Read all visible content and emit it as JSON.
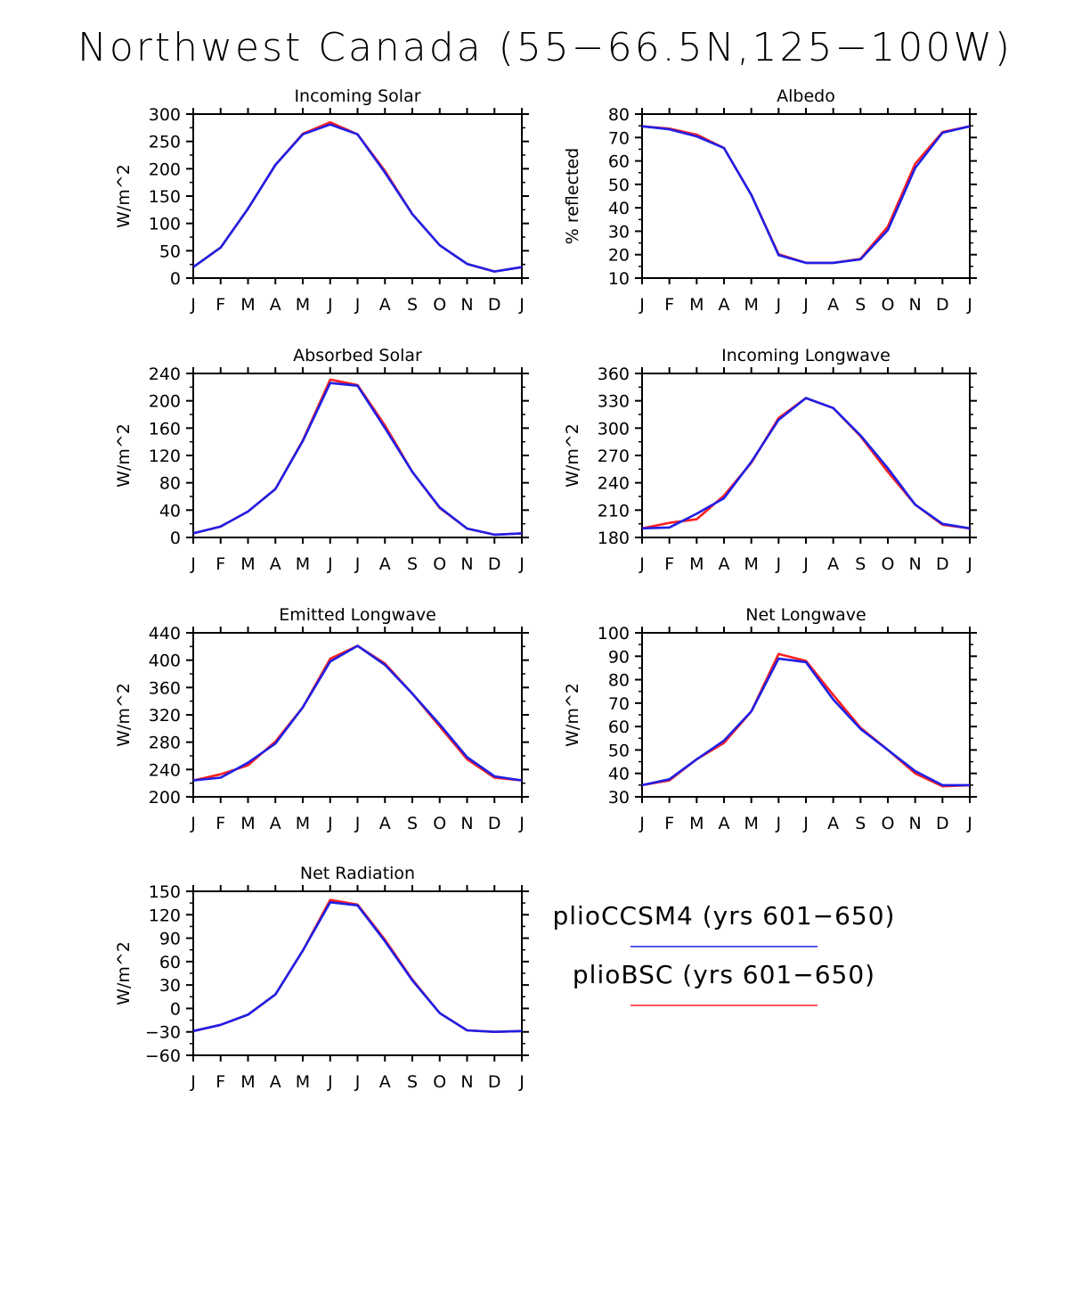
{
  "figure": {
    "title": "Northwest Canada (55−66.5N,125−100W)",
    "colors": {
      "pliocCCSM4": "#1f1fe6",
      "plioBSC": "#ff1f1f",
      "axis": "#000000"
    }
  },
  "legend": {
    "items": [
      {
        "label": "plioCCSM4 (yrs 601−650)",
        "color": "#1f1fe6"
      },
      {
        "label": "plioBSC (yrs 601−650)",
        "color": "#ff1f1f"
      }
    ]
  },
  "chart_data": [
    {
      "type": "line",
      "title": "Incoming Solar",
      "ylabel": "W/m^2",
      "xlabel": "",
      "categories": [
        "J",
        "F",
        "M",
        "A",
        "M",
        "J",
        "J",
        "A",
        "S",
        "O",
        "N",
        "D",
        "J"
      ],
      "ylim": [
        0,
        300
      ],
      "yticks": [
        0,
        50,
        100,
        150,
        200,
        250,
        300
      ],
      "series": [
        {
          "name": "plioCCSM4 (yrs 601−650)",
          "color": "#1f1fe6",
          "values": [
            20,
            56,
            127,
            207,
            263,
            281,
            263,
            193,
            117,
            60,
            26,
            12,
            20
          ]
        },
        {
          "name": "plioBSC (yrs 601−650)",
          "color": "#ff1f1f",
          "values": [
            20,
            56,
            127,
            207,
            264,
            285,
            263,
            196,
            117,
            60,
            26,
            12,
            20
          ]
        }
      ]
    },
    {
      "type": "line",
      "title": "Albedo",
      "ylabel": "% reflected",
      "xlabel": "",
      "categories": [
        "J",
        "F",
        "M",
        "A",
        "M",
        "J",
        "J",
        "A",
        "S",
        "O",
        "N",
        "D",
        "J"
      ],
      "ylim": [
        10,
        80
      ],
      "yticks": [
        10,
        20,
        30,
        40,
        50,
        60,
        70,
        80
      ],
      "series": [
        {
          "name": "plioCCSM4 (yrs 601−650)",
          "color": "#1f1fe6",
          "values": [
            74.8,
            73.5,
            70.5,
            65.5,
            45.5,
            19.8,
            16.5,
            16.5,
            18.0,
            30.5,
            57.0,
            72.0,
            74.8
          ]
        },
        {
          "name": "plioBSC (yrs 601−650)",
          "color": "#ff1f1f",
          "values": [
            74.8,
            73.8,
            71.2,
            65.5,
            45.5,
            20.2,
            16.5,
            16.5,
            18.2,
            32.0,
            58.8,
            72.3,
            74.8
          ]
        }
      ]
    },
    {
      "type": "line",
      "title": "Absorbed Solar",
      "ylabel": "W/m^2",
      "xlabel": "",
      "categories": [
        "J",
        "F",
        "M",
        "A",
        "M",
        "J",
        "J",
        "A",
        "S",
        "O",
        "N",
        "D",
        "J"
      ],
      "ylim": [
        0,
        240
      ],
      "yticks": [
        0,
        40,
        80,
        120,
        160,
        200,
        240
      ],
      "series": [
        {
          "name": "plioCCSM4 (yrs 601−650)",
          "color": "#1f1fe6",
          "values": [
            6,
            16,
            38,
            71,
            141,
            226,
            222,
            160,
            96,
            44,
            13,
            4,
            6
          ]
        },
        {
          "name": "plioBSC (yrs 601−650)",
          "color": "#ff1f1f",
          "values": [
            6,
            16,
            38,
            71,
            142,
            231,
            223,
            164,
            96,
            43,
            13,
            4,
            6
          ]
        }
      ]
    },
    {
      "type": "line",
      "title": "Incoming Longwave",
      "ylabel": "W/m^2",
      "xlabel": "",
      "categories": [
        "J",
        "F",
        "M",
        "A",
        "M",
        "J",
        "J",
        "A",
        "S",
        "O",
        "N",
        "D",
        "J"
      ],
      "ylim": [
        180,
        360
      ],
      "yticks": [
        180,
        210,
        240,
        270,
        300,
        330,
        360
      ],
      "series": [
        {
          "name": "plioCCSM4 (yrs 601−650)",
          "color": "#1f1fe6",
          "values": [
            190,
            191,
            206,
            223,
            263,
            309,
            333,
            322,
            292,
            256,
            216,
            195,
            190
          ]
        },
        {
          "name": "plioBSC (yrs 601−650)",
          "color": "#ff1f1f",
          "values": [
            190,
            196,
            200,
            226,
            262,
            311,
            333,
            322,
            291,
            252,
            216,
            194,
            190
          ]
        }
      ]
    },
    {
      "type": "line",
      "title": "Emitted Longwave",
      "ylabel": "W/m^2",
      "xlabel": "",
      "categories": [
        "J",
        "F",
        "M",
        "A",
        "M",
        "J",
        "J",
        "A",
        "S",
        "O",
        "N",
        "D",
        "J"
      ],
      "ylim": [
        200,
        440
      ],
      "yticks": [
        200,
        240,
        280,
        320,
        360,
        400,
        440
      ],
      "series": [
        {
          "name": "plioCCSM4 (yrs 601−650)",
          "color": "#1f1fe6",
          "values": [
            224,
            228,
            250,
            278,
            331,
            398,
            421,
            393,
            351,
            306,
            258,
            230,
            224
          ]
        },
        {
          "name": "plioBSC (yrs 601−650)",
          "color": "#ff1f1f",
          "values": [
            224,
            233,
            246,
            281,
            331,
            402,
            421,
            395,
            351,
            303,
            255,
            228,
            224
          ]
        }
      ]
    },
    {
      "type": "line",
      "title": "Net Longwave",
      "ylabel": "W/m^2",
      "xlabel": "",
      "categories": [
        "J",
        "F",
        "M",
        "A",
        "M",
        "J",
        "J",
        "A",
        "S",
        "O",
        "N",
        "D",
        "J"
      ],
      "ylim": [
        30,
        100
      ],
      "yticks": [
        30,
        40,
        50,
        60,
        70,
        80,
        90,
        100
      ],
      "series": [
        {
          "name": "plioCCSM4 (yrs 601−650)",
          "color": "#1f1fe6",
          "values": [
            35,
            37.5,
            46,
            54,
            66.5,
            89,
            87.5,
            71.5,
            59,
            50,
            41,
            35,
            35
          ]
        },
        {
          "name": "plioBSC (yrs 601−650)",
          "color": "#ff1f1f",
          "values": [
            35,
            37,
            46,
            53,
            66.5,
            91,
            88,
            73.5,
            59.5,
            50,
            40,
            34.5,
            35
          ]
        }
      ]
    },
    {
      "type": "line",
      "title": "Net Radiation",
      "ylabel": "W/m^2",
      "xlabel": "",
      "categories": [
        "J",
        "F",
        "M",
        "A",
        "M",
        "J",
        "J",
        "A",
        "S",
        "O",
        "N",
        "D",
        "J"
      ],
      "ylim": [
        -60,
        150
      ],
      "yticks": [
        -60,
        -30,
        0,
        30,
        60,
        90,
        120,
        150
      ],
      "series": [
        {
          "name": "plioCCSM4 (yrs 601−650)",
          "color": "#1f1fe6",
          "values": [
            -29,
            -21,
            -8,
            18,
            74,
            136,
            132,
            86,
            36,
            -6,
            -28,
            -30,
            -29
          ]
        },
        {
          "name": "plioBSC (yrs 601−650)",
          "color": "#ff1f1f",
          "values": [
            -29,
            -21,
            -8,
            18,
            74,
            139,
            133,
            88,
            37,
            -6,
            -28,
            -30,
            -29
          ]
        }
      ]
    }
  ]
}
